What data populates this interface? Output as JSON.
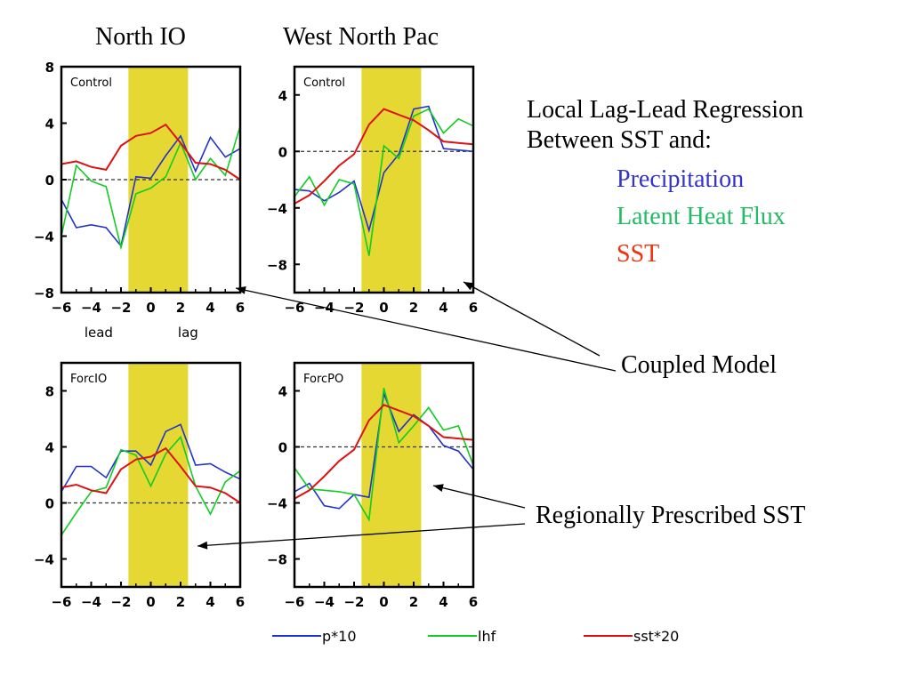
{
  "titles": {
    "col1": "North IO",
    "col2": "West North Pac"
  },
  "annotation": {
    "line1": "Local Lag-Lead Regression",
    "line2": "Between SST and:",
    "items": [
      {
        "label": "Precipitation",
        "color": "#3333cc"
      },
      {
        "label": "Latent Heat Flux",
        "color": "#22bb66"
      },
      {
        "label": "SST",
        "color": "#ee3311"
      }
    ],
    "coupled": "Coupled Model",
    "prescribed": "Regionally Prescribed SST"
  },
  "colors": {
    "p": "#2233cc",
    "lhf": "#11cc22",
    "sst": "#dd1111",
    "shade": "#e5d832"
  },
  "chart_data": [
    {
      "type": "line",
      "panel": "Control",
      "region": "North IO",
      "x": [
        -6,
        -5,
        -4,
        -3,
        -2,
        -1,
        0,
        1,
        2,
        3,
        4,
        5,
        6
      ],
      "xlim": [
        -6,
        6
      ],
      "ylim": [
        -8,
        8
      ],
      "xticks": [
        "-6",
        "-4",
        "-2",
        "0",
        "2",
        "4",
        "6"
      ],
      "yticks": [
        "-8",
        "-4",
        "0",
        "4",
        "8"
      ],
      "yticks_v": [
        -8,
        -4,
        0,
        4,
        8
      ],
      "shade": [
        -1.5,
        2.5
      ],
      "xlabels": {
        "lead": "lead",
        "lag": "lag"
      },
      "series": [
        {
          "name": "p*10",
          "values": [
            -1.4,
            -3.4,
            -3.2,
            -3.4,
            -4.7,
            0.2,
            0.1,
            1.7,
            3.1,
            0.6,
            3.0,
            1.6,
            2.2
          ]
        },
        {
          "name": "lhf",
          "values": [
            -4.0,
            1.0,
            -0.1,
            -0.5,
            -4.8,
            -1.0,
            -0.6,
            0.2,
            2.6,
            0.0,
            1.5,
            0.3,
            3.8
          ]
        },
        {
          "name": "sst*20",
          "values": [
            1.1,
            1.3,
            0.9,
            0.7,
            2.4,
            3.1,
            3.3,
            3.9,
            2.6,
            1.2,
            1.1,
            0.7,
            0.0
          ]
        }
      ]
    },
    {
      "type": "line",
      "panel": "Control",
      "region": "West North Pac",
      "x": [
        -6,
        -5,
        -4,
        -3,
        -2,
        -1,
        0,
        1,
        2,
        3,
        4,
        5,
        6
      ],
      "xlim": [
        -6,
        6
      ],
      "ylim": [
        -10,
        6
      ],
      "xticks": [
        "-6",
        "-4",
        "-2",
        "0",
        "2",
        "4",
        "6"
      ],
      "yticks": [
        "-8",
        "-4",
        "0",
        "4"
      ],
      "yticks_v": [
        -8,
        -4,
        0,
        4
      ],
      "shade": [
        -1.5,
        2.5
      ],
      "series": [
        {
          "name": "p*10",
          "values": [
            -2.7,
            -2.8,
            -3.5,
            -2.9,
            -2.1,
            -5.6,
            -1.5,
            -0.2,
            3.0,
            3.2,
            0.2,
            0.1,
            0.0
          ]
        },
        {
          "name": "lhf",
          "values": [
            -3.2,
            -1.8,
            -3.8,
            -2.0,
            -2.3,
            -7.4,
            0.4,
            -0.5,
            2.5,
            3.0,
            1.3,
            2.3,
            1.8
          ]
        },
        {
          "name": "sst*20",
          "values": [
            -3.7,
            -3.1,
            -2.1,
            -1.0,
            -0.2,
            1.9,
            3.0,
            2.6,
            2.2,
            1.5,
            0.7,
            0.6,
            0.5
          ]
        }
      ]
    },
    {
      "type": "line",
      "panel": "ForcIO",
      "region": "North IO",
      "x": [
        -6,
        -5,
        -4,
        -3,
        -2,
        -1,
        0,
        1,
        2,
        3,
        4,
        5,
        6
      ],
      "xlim": [
        -6,
        6
      ],
      "ylim": [
        -6,
        10
      ],
      "xticks": [
        "-6",
        "-4",
        "-2",
        "0",
        "2",
        "4",
        "6"
      ],
      "yticks": [
        "-4",
        "0",
        "4",
        "8"
      ],
      "yticks_v": [
        -4,
        0,
        4,
        8
      ],
      "shade": [
        -1.5,
        2.5
      ],
      "series": [
        {
          "name": "p*10",
          "values": [
            0.8,
            2.6,
            2.6,
            1.8,
            3.7,
            3.7,
            2.7,
            5.1,
            5.6,
            2.7,
            2.8,
            2.2,
            1.7
          ]
        },
        {
          "name": "lhf",
          "values": [
            -2.3,
            -0.7,
            0.8,
            1.1,
            3.8,
            3.4,
            1.2,
            3.5,
            4.7,
            1.2,
            -0.8,
            1.5,
            2.3
          ]
        },
        {
          "name": "sst*20",
          "values": [
            1.1,
            1.3,
            0.9,
            0.7,
            2.4,
            3.1,
            3.3,
            3.9,
            2.6,
            1.2,
            1.1,
            0.7,
            0.0
          ]
        }
      ]
    },
    {
      "type": "line",
      "panel": "ForcPO",
      "region": "West North Pac",
      "x": [
        -6,
        -5,
        -4,
        -3,
        -2,
        -1,
        0,
        1,
        2,
        3,
        4,
        5,
        6
      ],
      "xlim": [
        -6,
        6
      ],
      "ylim": [
        -10,
        6
      ],
      "xticks": [
        "-6",
        "-4",
        "-2",
        "0",
        "2",
        "4",
        "6"
      ],
      "yticks": [
        "-8",
        "-4",
        "0",
        "4"
      ],
      "yticks_v": [
        -8,
        -4,
        0,
        4
      ],
      "shade": [
        -1.5,
        2.5
      ],
      "series": [
        {
          "name": "p*10",
          "values": [
            -3.2,
            -2.6,
            -4.2,
            -4.4,
            -3.4,
            -3.6,
            3.8,
            1.1,
            2.3,
            1.5,
            0.1,
            -0.3,
            -1.6
          ]
        },
        {
          "name": "lhf",
          "values": [
            -1.5,
            -3.0,
            -3.1,
            -3.2,
            -3.4,
            -5.2,
            4.2,
            0.3,
            1.5,
            2.8,
            1.2,
            1.5,
            -1.3
          ]
        },
        {
          "name": "sst*20",
          "values": [
            -3.7,
            -3.1,
            -2.1,
            -1.0,
            -0.2,
            1.9,
            3.0,
            2.6,
            2.2,
            1.5,
            0.7,
            0.6,
            0.5
          ]
        }
      ]
    }
  ],
  "legend": [
    {
      "label": "p*10",
      "key": "p"
    },
    {
      "label": "lhf",
      "key": "lhf"
    },
    {
      "label": "sst*20",
      "key": "sst"
    }
  ]
}
